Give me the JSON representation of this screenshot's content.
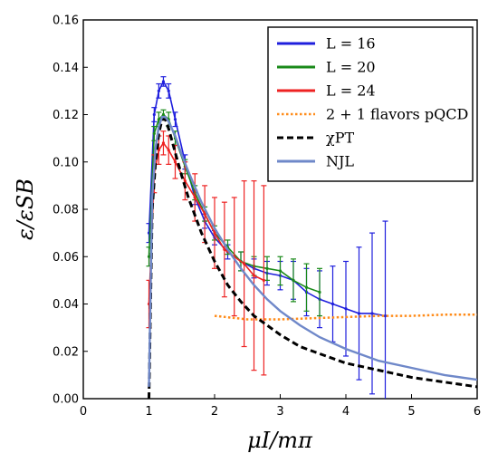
{
  "chart_data": {
    "type": "line",
    "title": "",
    "xlabel": "μI/mπ",
    "ylabel": "ε/εSB",
    "xlim": [
      0,
      6
    ],
    "ylim": [
      0,
      0.16
    ],
    "xticks": [
      "0",
      "1",
      "2",
      "3",
      "4",
      "5",
      "6"
    ],
    "yticks": [
      "0.00",
      "0.02",
      "0.04",
      "0.06",
      "0.08",
      "0.10",
      "0.12",
      "0.14",
      "0.16"
    ],
    "legend_position": "top-right",
    "series": [
      {
        "name": "L = 16",
        "style": "errorbars",
        "color": "#1f1fdd",
        "x": [
          1.0,
          1.08,
          1.15,
          1.22,
          1.3,
          1.4,
          1.55,
          1.7,
          1.85,
          2.0,
          2.2,
          2.4,
          2.6,
          2.8,
          3.0,
          3.2,
          3.4,
          3.6,
          3.8,
          4.0,
          4.2,
          4.4,
          4.6
        ],
        "y": [
          0.07,
          0.12,
          0.13,
          0.134,
          0.13,
          0.118,
          0.1,
          0.085,
          0.075,
          0.068,
          0.062,
          0.058,
          0.055,
          0.053,
          0.052,
          0.05,
          0.045,
          0.042,
          0.04,
          0.038,
          0.036,
          0.036,
          0.035
        ],
        "err": [
          0.004,
          0.003,
          0.003,
          0.002,
          0.003,
          0.003,
          0.003,
          0.003,
          0.003,
          0.003,
          0.003,
          0.004,
          0.004,
          0.005,
          0.006,
          0.008,
          0.01,
          0.012,
          0.016,
          0.02,
          0.028,
          0.034,
          0.04
        ]
      },
      {
        "name": "L = 20",
        "style": "errorbars",
        "color": "#1a8a1a",
        "x": [
          1.0,
          1.08,
          1.15,
          1.22,
          1.3,
          1.4,
          1.55,
          1.7,
          1.85,
          2.0,
          2.2,
          2.4,
          2.6,
          2.8,
          3.0,
          3.2,
          3.4,
          3.6
        ],
        "y": [
          0.06,
          0.112,
          0.118,
          0.12,
          0.118,
          0.11,
          0.098,
          0.087,
          0.078,
          0.07,
          0.064,
          0.058,
          0.056,
          0.055,
          0.054,
          0.05,
          0.047,
          0.045
        ],
        "err": [
          0.004,
          0.003,
          0.003,
          0.002,
          0.003,
          0.003,
          0.003,
          0.003,
          0.003,
          0.003,
          0.003,
          0.004,
          0.004,
          0.005,
          0.006,
          0.009,
          0.01,
          0.01
        ]
      },
      {
        "name": "L = 24",
        "style": "errorbars",
        "color": "#ee2222",
        "x": [
          1.0,
          1.08,
          1.15,
          1.22,
          1.3,
          1.4,
          1.55,
          1.7,
          1.85,
          2.0,
          2.15,
          2.3,
          2.45,
          2.6,
          2.75
        ],
        "y": [
          0.04,
          0.095,
          0.105,
          0.108,
          0.105,
          0.1,
          0.092,
          0.085,
          0.078,
          0.07,
          0.063,
          0.06,
          0.057,
          0.052,
          0.05
        ],
        "err": [
          0.01,
          0.008,
          0.006,
          0.005,
          0.006,
          0.007,
          0.008,
          0.01,
          0.012,
          0.015,
          0.02,
          0.025,
          0.035,
          0.04,
          0.04
        ]
      },
      {
        "name": "2 + 1 flavors pQCD",
        "style": "dotted",
        "color": "#ff8c1a",
        "x": [
          2.0,
          2.5,
          3.0,
          3.5,
          4.0,
          4.5,
          5.0,
          5.5,
          6.0
        ],
        "y": [
          0.035,
          0.0335,
          0.0335,
          0.034,
          0.0345,
          0.035,
          0.035,
          0.0355,
          0.0355
        ]
      },
      {
        "name": "χPT",
        "style": "dashed",
        "color": "#000000",
        "x": [
          1.0,
          1.05,
          1.1,
          1.15,
          1.2,
          1.25,
          1.3,
          1.4,
          1.5,
          1.6,
          1.8,
          2.0,
          2.2,
          2.4,
          2.6,
          2.8,
          3.0,
          3.3,
          3.6,
          4.0,
          4.5,
          5.0,
          5.5,
          6.0
        ],
        "y": [
          0.0,
          0.08,
          0.1,
          0.112,
          0.118,
          0.118,
          0.114,
          0.104,
          0.094,
          0.085,
          0.07,
          0.058,
          0.048,
          0.041,
          0.035,
          0.031,
          0.027,
          0.022,
          0.019,
          0.015,
          0.012,
          0.009,
          0.007,
          0.005
        ]
      },
      {
        "name": "NJL",
        "style": "solid",
        "color": "#6f88c9",
        "x": [
          1.0,
          1.05,
          1.1,
          1.15,
          1.2,
          1.25,
          1.3,
          1.4,
          1.5,
          1.6,
          1.8,
          2.0,
          2.2,
          2.4,
          2.6,
          2.8,
          3.0,
          3.3,
          3.6,
          4.0,
          4.5,
          5.0,
          5.5,
          6.0
        ],
        "y": [
          0.005,
          0.085,
          0.106,
          0.115,
          0.119,
          0.119,
          0.117,
          0.111,
          0.103,
          0.096,
          0.083,
          0.072,
          0.063,
          0.055,
          0.048,
          0.042,
          0.037,
          0.031,
          0.026,
          0.021,
          0.016,
          0.013,
          0.01,
          0.008
        ]
      }
    ]
  }
}
